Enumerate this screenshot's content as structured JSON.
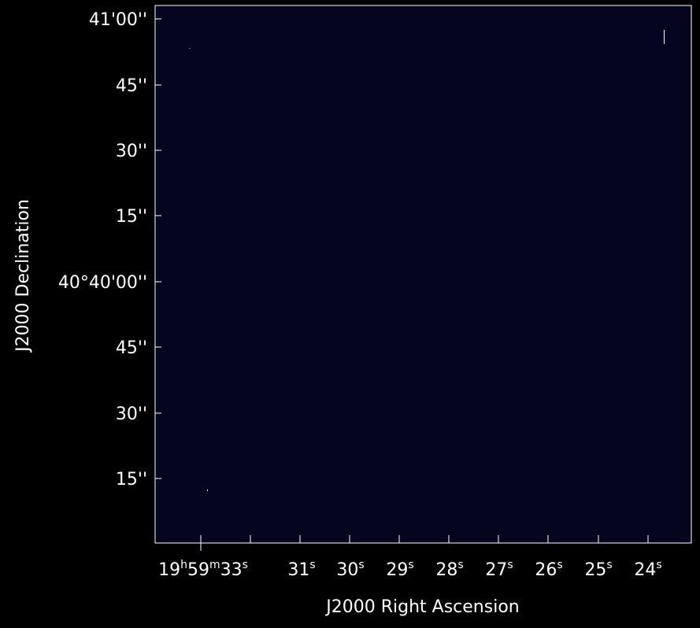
{
  "colors": {
    "background": "#000000",
    "plot_background": "#05051f",
    "frame": "#ffffff",
    "text": "#ffffff",
    "pixel_blue": "#4466ff"
  },
  "xaxis": {
    "label": "J2000 Right Ascension",
    "ticks": [
      {
        "h": "19",
        "m": "59",
        "s": "33",
        "full": true
      },
      {
        "s": "31"
      },
      {
        "s": "30"
      },
      {
        "s": "29"
      },
      {
        "s": "28"
      },
      {
        "s": "27"
      },
      {
        "s": "26"
      },
      {
        "s": "25"
      },
      {
        "s": "24"
      }
    ],
    "sup_h": "h",
    "sup_m": "m",
    "sup_s": "s"
  },
  "yaxis": {
    "label": "J2000 Declination",
    "ticks": [
      {
        "text": "41'00''"
      },
      {
        "text": "45''"
      },
      {
        "text": "30''"
      },
      {
        "text": "15''"
      },
      {
        "text": "40°40'00''"
      },
      {
        "text": "45''"
      },
      {
        "text": "30''"
      },
      {
        "text": "15''"
      }
    ]
  }
}
